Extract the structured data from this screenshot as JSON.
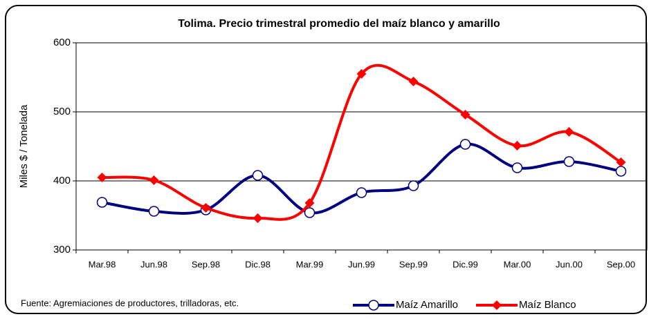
{
  "chart_data": {
    "type": "line",
    "title": "Tolima. Precio trimestral promedio del maíz blanco y amarillo",
    "y_label": "Miles $ / Tonelada",
    "note": "Fuente: Agremiaciones de productores, trilladoras, etc.",
    "categories": [
      "Mar.98",
      "Jun.98",
      "Sep.98",
      "Dic.98",
      "Mar.99",
      "Jun.99",
      "Sep.99",
      "Dic.99",
      "Mar.00",
      "Jun.00",
      "Sep.00"
    ],
    "series": [
      {
        "name": "Maíz Amarillo",
        "color": "#000080",
        "marker": "circle",
        "values": [
          369,
          356,
          358,
          408,
          354,
          383,
          393,
          453,
          419,
          428,
          414
        ]
      },
      {
        "name": "Maíz Blanco",
        "color": "#ff0000",
        "marker": "diamond",
        "values": [
          405,
          401,
          361,
          346,
          368,
          555,
          544,
          496,
          451,
          471,
          427
        ]
      }
    ],
    "ylim": [
      300,
      600
    ],
    "yticks": [
      300,
      400,
      500,
      600
    ],
    "grid": true,
    "smooth": true,
    "legend": "bottom-right"
  }
}
